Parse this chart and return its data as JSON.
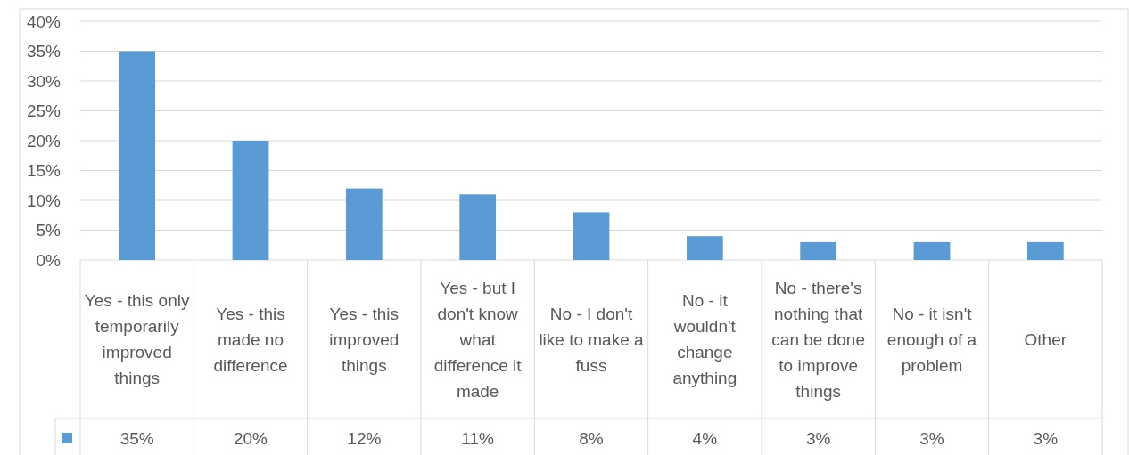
{
  "chart_data": {
    "type": "bar",
    "categories": [
      "Yes - this only temporarily improved things",
      "Yes - this made no difference",
      "Yes - this improved things",
      "Yes - but I don't know what difference it made",
      "No - I don't like to make a fuss",
      "No - it wouldn't change anything",
      "No - there's nothing that can be done to improve things",
      "No - it isn't enough of a problem",
      "Other"
    ],
    "values": [
      35,
      20,
      12,
      11,
      8,
      4,
      3,
      3,
      3
    ],
    "value_labels": [
      "35%",
      "20%",
      "12%",
      "11%",
      "8%",
      "4%",
      "3%",
      "3%",
      "3%"
    ],
    "color": "#5b9bd5",
    "ylim": [
      0,
      40
    ],
    "yticks": [
      {
        "value": 0,
        "label": "0%"
      },
      {
        "value": 5,
        "label": "5%"
      },
      {
        "value": 10,
        "label": "10%"
      },
      {
        "value": 15,
        "label": "15%"
      },
      {
        "value": 20,
        "label": "20%"
      },
      {
        "value": 25,
        "label": "25%"
      },
      {
        "value": 30,
        "label": "30%"
      },
      {
        "value": 35,
        "label": "35%"
      },
      {
        "value": 40,
        "label": "40%"
      }
    ],
    "grid": "y"
  }
}
